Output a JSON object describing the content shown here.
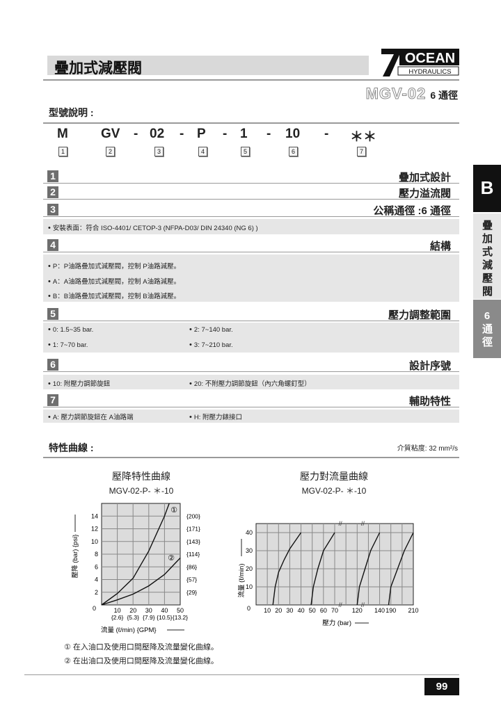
{
  "header": {
    "title": "疊加式減壓閥",
    "logo_top": "OCEAN",
    "logo_bottom": "HYDRAULICS",
    "logo_mark": "7",
    "model": "MGV-02",
    "size": "6 通徑"
  },
  "model_code": {
    "heading": "型號說明 :",
    "parts": [
      "M",
      "GV",
      "-",
      "02",
      "-",
      "P",
      "-",
      "1",
      "-",
      "10",
      "-",
      "＊＊"
    ],
    "numbers": [
      "1",
      "2",
      "3",
      "4",
      "5",
      "6",
      "7"
    ]
  },
  "sections": [
    {
      "num": "1",
      "label": "疊加式設計"
    },
    {
      "num": "2",
      "label": "壓力溢流閥"
    },
    {
      "num": "3",
      "label": "公稱通徑 :6 通徑",
      "items": [
        "安裝表面：符合 ISO-4401/ CETOP-3 (NFPA-D03/ DIN 24340 (NG 6) )"
      ]
    },
    {
      "num": "4",
      "label": "結構",
      "items": [
        "P：P油路疊加式減壓閥，控制 P油路減壓。",
        "A：A油路疊加式減壓閥，控制 A油路減壓。",
        "B：B油路疊加式減壓閥，控制 B油路減壓。"
      ]
    },
    {
      "num": "5",
      "label": "壓力調整範圍",
      "items": [
        "0: 1.5~35 bar.",
        "2: 7~140 bar.",
        "1: 7~70 bar.",
        "3: 7~210 bar."
      ]
    },
    {
      "num": "6",
      "label": "設計序號",
      "items": [
        "10: 附壓力調節旋鈕",
        "20: 不附壓力調節旋鈕（內六角螺釘型）"
      ]
    },
    {
      "num": "7",
      "label": "輔助特性",
      "items": [
        "A: 壓力調節旋鈕在 A油路端",
        "H: 附壓力錶接口"
      ]
    }
  ],
  "side_tab": {
    "letter": "B",
    "category": "疊加式減壓閥",
    "size_num": "6",
    "size_text": "通徑"
  },
  "curves": {
    "heading": "特性曲線 :",
    "viscosity": "介質粘度: 32 mm²/s"
  },
  "chart_data": [
    {
      "type": "line",
      "title": "壓降特性曲線",
      "subtitle": "MGV-02-P- ＊-10",
      "xlabel": "流量 (ℓ/min) {GPM}",
      "ylabel": "壓降 (bar) {psi}",
      "xlim": [
        0,
        50
      ],
      "ylim": [
        0,
        16
      ],
      "grid": true,
      "x_ticks": [
        "10",
        "20",
        "30",
        "40",
        "50"
      ],
      "x_ticks_gpm": [
        "{2.6}",
        "{5.3}",
        "{7.9}",
        "{10.5}",
        "{13.2}"
      ],
      "y_ticks": [
        "0",
        "2",
        "4",
        "6",
        "8",
        "10",
        "12",
        "14"
      ],
      "y_ticks_psi": [
        "{29}",
        "{57}",
        "{86}",
        "{114}",
        "{143}",
        "{171}",
        "{200}"
      ],
      "series": [
        {
          "name": "①",
          "x": [
            0,
            10,
            20,
            30,
            40,
            43
          ],
          "y": [
            0,
            1.8,
            4.2,
            8.5,
            14,
            16
          ]
        },
        {
          "name": "②",
          "x": [
            0,
            10,
            20,
            30,
            40,
            50
          ],
          "y": [
            0,
            0.8,
            1.7,
            3,
            4.8,
            7.4
          ]
        }
      ]
    },
    {
      "type": "line",
      "title": "壓力對流量曲線",
      "subtitle": "MGV-02-P- ＊-10",
      "xlabel": "壓力 (bar)",
      "ylabel": "流量 (ℓ/min)",
      "ylim": [
        0,
        45
      ],
      "grid": true,
      "x_axis_breaks": [
        75,
        165
      ],
      "x_ticks": [
        "10",
        "20",
        "30",
        "40",
        "50",
        "60",
        "70",
        "120",
        "140",
        "190",
        "210"
      ],
      "y_ticks": [
        "0",
        "10",
        "20",
        "30",
        "40"
      ],
      "series": [
        {
          "x": [
            15,
            17,
            20,
            25,
            30,
            40
          ],
          "y": [
            0,
            10,
            18,
            25,
            31,
            40
          ]
        },
        {
          "x": [
            49,
            51,
            55,
            60,
            70
          ],
          "y": [
            0,
            10,
            20,
            30,
            40
          ]
        },
        {
          "x": [
            120,
            122,
            127,
            132,
            140
          ],
          "y": [
            0,
            10,
            20,
            30,
            40
          ]
        },
        {
          "x": [
            188,
            190,
            196,
            202,
            210
          ],
          "y": [
            0,
            10,
            20,
            30,
            40
          ]
        }
      ]
    }
  ],
  "notes": [
    "① 在入油口及使用口間壓降及流量變化曲線。",
    "② 在出油口及使用口間壓降及流量變化曲線。"
  ],
  "page_number": "99"
}
